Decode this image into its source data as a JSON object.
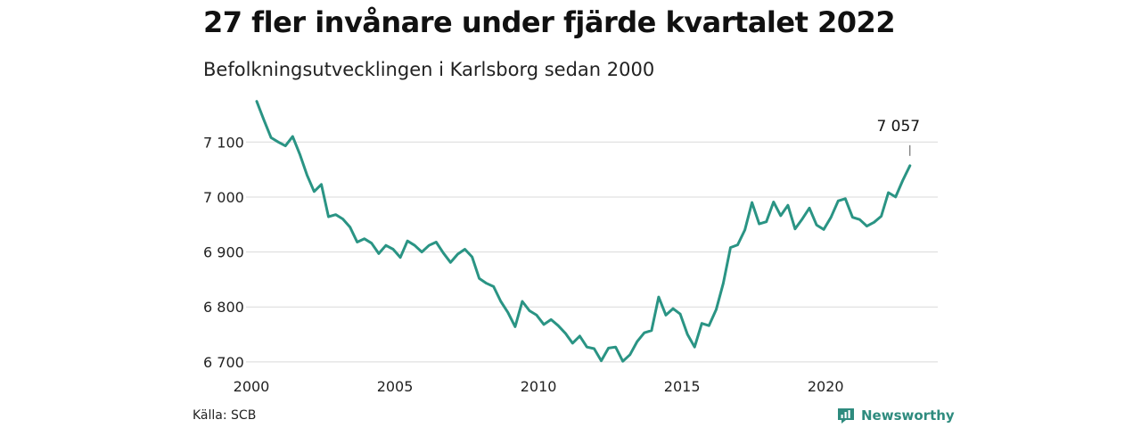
{
  "chart_data": {
    "type": "line",
    "title": "27 fler invånare under fjärde kvartalet 2022",
    "subtitle": "Befolkningsutvecklingen i Karlsborg sedan 2000",
    "source": "Källa: SCB",
    "brand": "Newsworthy",
    "x_ticks": [
      "2000",
      "2005",
      "2010",
      "2015",
      "2020"
    ],
    "y_ticks": [
      "6 700",
      "6 800",
      "6 900",
      "7 000",
      "7 100"
    ],
    "ylim": [
      6690,
      7180
    ],
    "grid": true,
    "line_color": "#2a9484",
    "annotation": {
      "label": "7 057",
      "value": 7057
    },
    "series": [
      {
        "x": [
          "2000-Q1",
          "2000-Q2",
          "2000-Q3",
          "2000-Q4",
          "2001-Q1",
          "2001-Q2",
          "2001-Q3",
          "2001-Q4",
          "2002-Q1",
          "2002-Q2",
          "2002-Q3",
          "2002-Q4",
          "2003-Q1",
          "2003-Q2",
          "2003-Q3",
          "2003-Q4",
          "2004-Q1",
          "2004-Q2",
          "2004-Q3",
          "2004-Q4",
          "2005-Q1",
          "2005-Q2",
          "2005-Q3",
          "2005-Q4",
          "2006-Q1",
          "2006-Q2",
          "2006-Q3",
          "2006-Q4",
          "2007-Q1",
          "2007-Q2",
          "2007-Q3",
          "2007-Q4",
          "2008-Q1",
          "2008-Q2",
          "2008-Q3",
          "2008-Q4",
          "2009-Q1",
          "2009-Q2",
          "2009-Q3",
          "2009-Q4",
          "2010-Q1",
          "2010-Q2",
          "2010-Q3",
          "2010-Q4",
          "2011-Q1",
          "2011-Q2",
          "2011-Q3",
          "2011-Q4",
          "2012-Q1",
          "2012-Q2",
          "2012-Q3",
          "2012-Q4",
          "2013-Q1",
          "2013-Q2",
          "2013-Q3",
          "2013-Q4",
          "2014-Q1",
          "2014-Q2",
          "2014-Q3",
          "2014-Q4",
          "2015-Q1",
          "2015-Q2",
          "2015-Q3",
          "2015-Q4",
          "2016-Q1",
          "2016-Q2",
          "2016-Q3",
          "2016-Q4",
          "2017-Q1",
          "2017-Q2",
          "2017-Q3",
          "2017-Q4",
          "2018-Q1",
          "2018-Q2",
          "2018-Q3",
          "2018-Q4",
          "2019-Q1",
          "2019-Q2",
          "2019-Q3",
          "2019-Q4",
          "2020-Q1",
          "2020-Q2",
          "2020-Q3",
          "2020-Q4",
          "2021-Q1",
          "2021-Q2",
          "2021-Q3",
          "2021-Q4",
          "2022-Q1",
          "2022-Q2",
          "2022-Q3",
          "2022-Q4"
        ],
        "y": [
          7174,
          7140,
          7108,
          7100,
          7093,
          7110,
          7078,
          7040,
          7010,
          7023,
          6964,
          6968,
          6960,
          6945,
          6918,
          6924,
          6916,
          6897,
          6912,
          6905,
          6890,
          6920,
          6912,
          6900,
          6912,
          6918,
          6898,
          6881,
          6896,
          6905,
          6891,
          6852,
          6843,
          6837,
          6810,
          6790,
          6764,
          6810,
          6793,
          6785,
          6768,
          6777,
          6766,
          6752,
          6734,
          6747,
          6727,
          6724,
          6702,
          6725,
          6727,
          6701,
          6713,
          6737,
          6753,
          6757,
          6818,
          6785,
          6797,
          6787,
          6750,
          6727,
          6770,
          6766,
          6795,
          6843,
          6908,
          6913,
          6940,
          6990,
          6951,
          6955,
          6991,
          6966,
          6985,
          6942,
          6960,
          6980,
          6949,
          6941,
          6963,
          6993,
          6997,
          6963,
          6959,
          6947,
          6954,
          6965,
          7008,
          7000,
          7030,
          7057
        ]
      }
    ]
  }
}
